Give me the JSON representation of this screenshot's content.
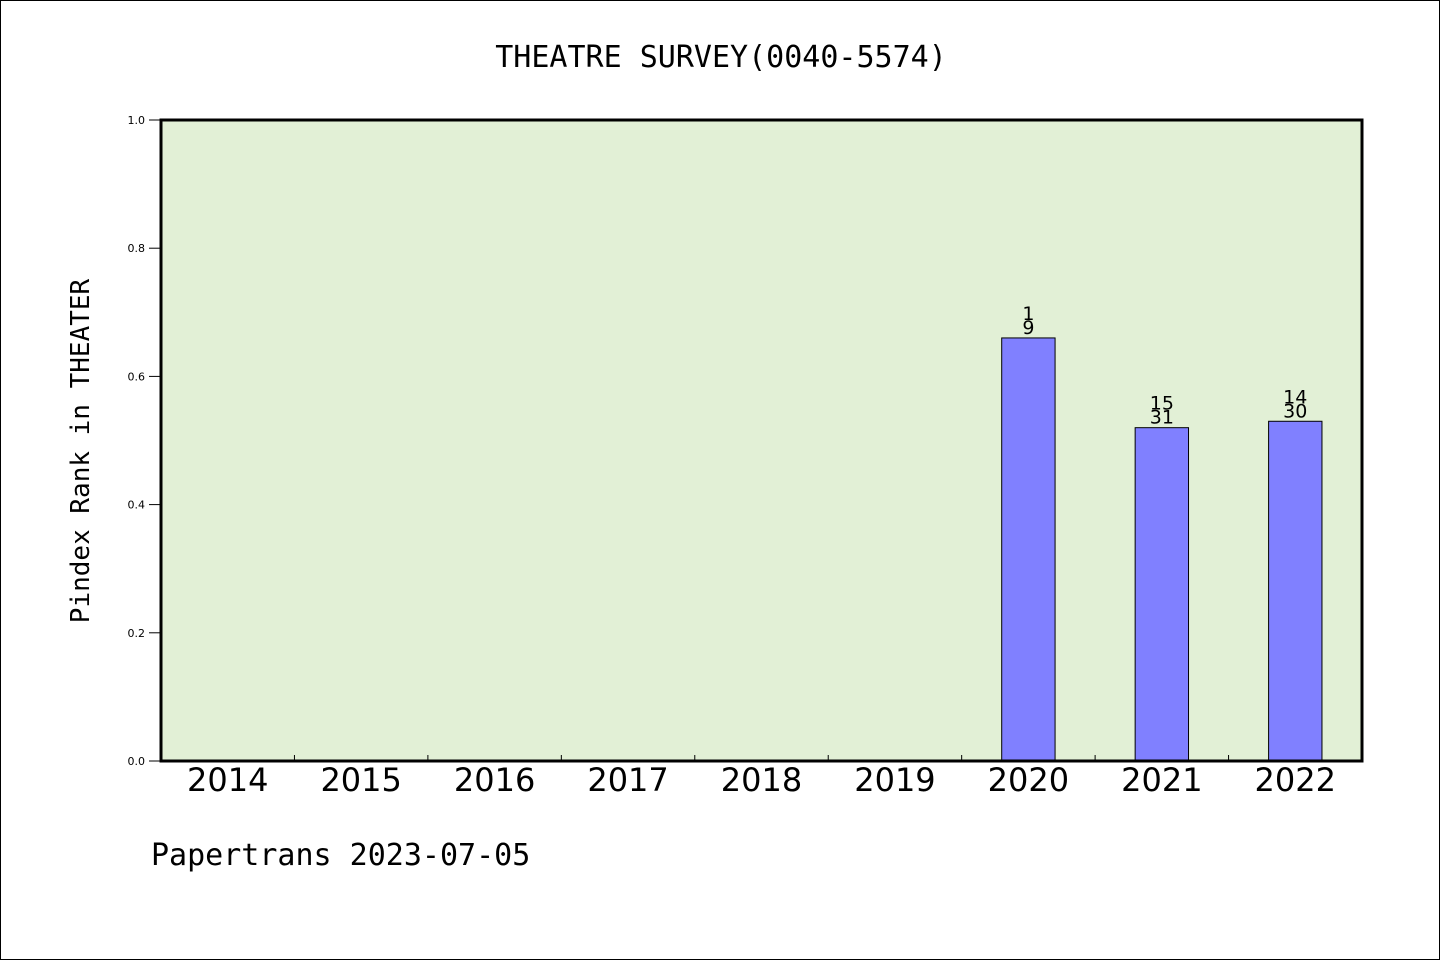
{
  "chart_data": {
    "type": "bar",
    "title": "THEATRE SURVEY(0040-5574)",
    "xlabel": "",
    "ylabel": "Pindex Rank in THEATER",
    "categories": [
      "2014",
      "2015",
      "2016",
      "2017",
      "2018",
      "2019",
      "2020",
      "2021",
      "2022"
    ],
    "series": [
      {
        "values": [
          null,
          null,
          null,
          null,
          null,
          null,
          0.66,
          0.52,
          0.53
        ],
        "rank_labels": [
          "",
          "",
          "",
          "",
          "",
          "",
          "1",
          "15",
          "14"
        ],
        "total_labels": [
          "",
          "",
          "",
          "",
          "",
          "",
          "9",
          "31",
          "30"
        ]
      }
    ],
    "ylim": [
      0,
      1.0
    ],
    "yticks": [
      "0.0",
      "0.2",
      "0.4",
      "0.6",
      "0.8",
      "1.0"
    ],
    "ytick_values": [
      0,
      0.2,
      0.4,
      0.6,
      0.8,
      1.0
    ],
    "grid": false,
    "legend": "none",
    "colors": {
      "plot_background": "#e2f0d6",
      "bar_fill": "#8080ff",
      "bar_stroke": "#000000",
      "axis": "#000000"
    }
  },
  "footer": {
    "text": "Papertrans 2023-07-05"
  }
}
